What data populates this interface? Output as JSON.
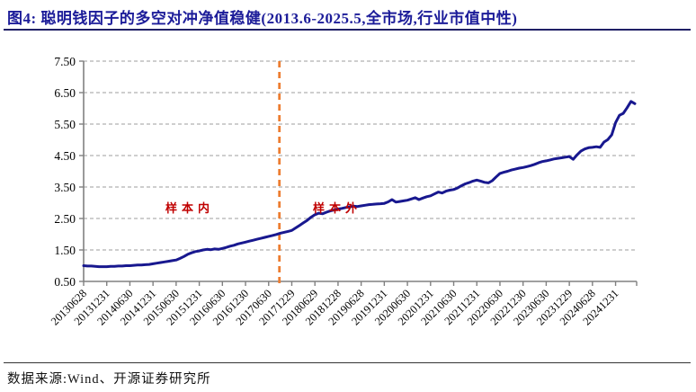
{
  "figure": {
    "title": "图4: 聪明钱因子的多空对冲净值稳健(2013.6-2025.5,全市场,行业市值中性)"
  },
  "chart_data": {
    "type": "line",
    "title": "聪明钱因子的多空对冲净值(全市场,行业市值中性)",
    "x_start": "2013-06",
    "x_end": "2025-05",
    "frequency": "monthly",
    "n_points": 144,
    "values": [
      1.0,
      0.99,
      0.99,
      0.98,
      0.97,
      0.97,
      0.97,
      0.98,
      0.98,
      0.99,
      0.99,
      1.0,
      1.0,
      1.01,
      1.02,
      1.02,
      1.03,
      1.04,
      1.06,
      1.08,
      1.1,
      1.12,
      1.14,
      1.16,
      1.18,
      1.23,
      1.29,
      1.36,
      1.41,
      1.45,
      1.47,
      1.5,
      1.52,
      1.51,
      1.53,
      1.52,
      1.55,
      1.58,
      1.62,
      1.65,
      1.69,
      1.72,
      1.75,
      1.78,
      1.81,
      1.84,
      1.87,
      1.9,
      1.93,
      1.96,
      1.99,
      2.03,
      2.06,
      2.09,
      2.12,
      2.2,
      2.28,
      2.36,
      2.44,
      2.54,
      2.62,
      2.67,
      2.65,
      2.7,
      2.74,
      2.77,
      2.8,
      2.82,
      2.85,
      2.87,
      2.89,
      2.88,
      2.9,
      2.92,
      2.94,
      2.95,
      2.96,
      2.97,
      2.98,
      3.03,
      3.1,
      3.02,
      3.04,
      3.06,
      3.08,
      3.12,
      3.16,
      3.1,
      3.15,
      3.19,
      3.22,
      3.28,
      3.34,
      3.31,
      3.37,
      3.4,
      3.42,
      3.47,
      3.54,
      3.6,
      3.64,
      3.69,
      3.72,
      3.69,
      3.65,
      3.63,
      3.7,
      3.82,
      3.93,
      3.97,
      4.0,
      4.04,
      4.07,
      4.1,
      4.12,
      4.15,
      4.18,
      4.22,
      4.27,
      4.31,
      4.33,
      4.36,
      4.39,
      4.41,
      4.43,
      4.45,
      4.47,
      4.38,
      4.52,
      4.64,
      4.71,
      4.75,
      4.76,
      4.78,
      4.76,
      4.93,
      5.01,
      5.16,
      5.55,
      5.78,
      5.84,
      6.02,
      6.22,
      6.15
    ],
    "x_tick_labels": [
      "20130628",
      "20131231",
      "20140630",
      "20141231",
      "20150630",
      "20151231",
      "20160630",
      "20161230",
      "20170630",
      "20171229",
      "20180629",
      "20181228",
      "20190628",
      "20191231",
      "20200630",
      "20201231",
      "20210630",
      "20211231",
      "20220630",
      "20221230",
      "20230630",
      "20231229",
      "20240628",
      "20241231"
    ],
    "y_tick_labels": [
      "7.50",
      "6.50",
      "5.50",
      "4.50",
      "3.50",
      "2.50",
      "1.50",
      "0.50"
    ],
    "ylim": [
      0.5,
      7.5
    ],
    "grid": "dashed-horizontal",
    "legend": "none",
    "annotations": [
      {
        "text": "样本内"
      },
      {
        "text": "样本外"
      }
    ],
    "divider_line": {
      "style": "dashed",
      "meaning": "样本内/样本外分界"
    }
  },
  "footer": {
    "source": "数据来源:Wind、开源证券研究所"
  },
  "colors": {
    "title": "#1c1c99",
    "series_line": "#18188f",
    "divider": "#ed7d31",
    "annotation": "#c00000",
    "gridline": "#b0b0b0",
    "axis": "#808080",
    "tick_text": "#000000"
  }
}
